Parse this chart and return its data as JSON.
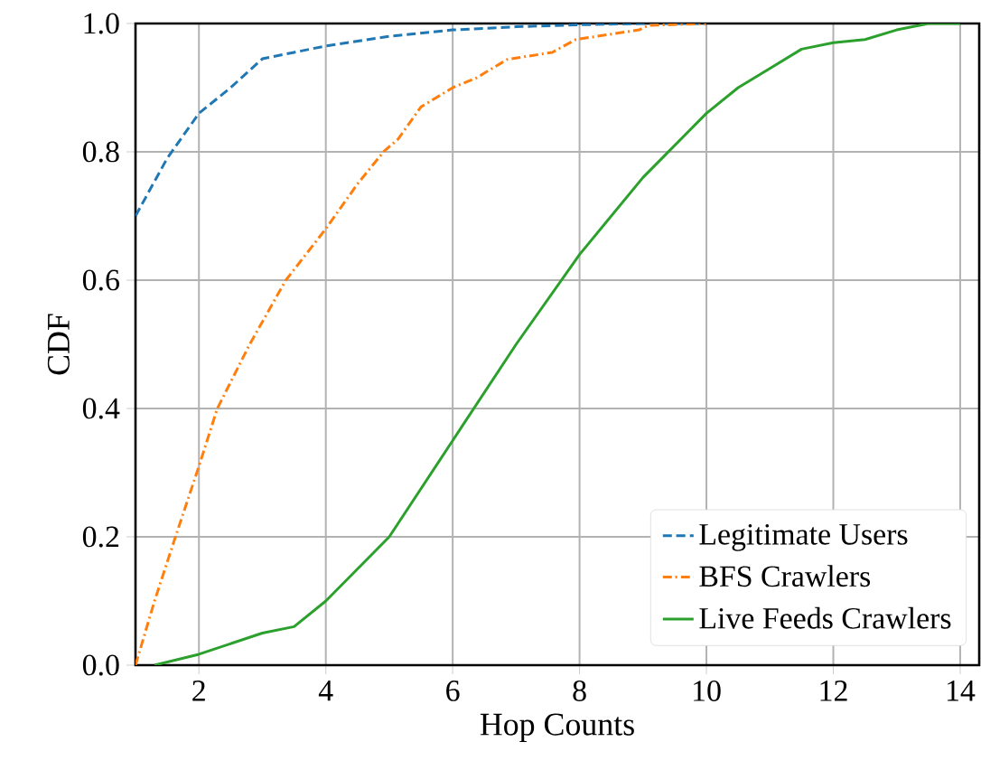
{
  "chart_data": {
    "type": "line",
    "xlabel": "Hop Counts",
    "ylabel": "CDF",
    "xlim": [
      1,
      14.3
    ],
    "ylim": [
      0,
      1
    ],
    "xticks": [
      2,
      4,
      6,
      8,
      10,
      12,
      14
    ],
    "yticks": [
      {
        "value": 0,
        "label": "0.0"
      },
      0.2,
      0.4,
      0.6,
      0.8,
      {
        "value": 1,
        "label": "1.0"
      }
    ],
    "grid": true,
    "legend": "bottom right",
    "marker": "none",
    "series": [
      {
        "name": "Legitimate Users",
        "color": "#1f77b4",
        "line_style": "dashed",
        "x": [
          1,
          1.5,
          2,
          2.5,
          3,
          3.5,
          4,
          5,
          6,
          7,
          8,
          9,
          10
        ],
        "values": [
          0.7,
          0.79,
          0.86,
          0.9,
          0.945,
          0.955,
          0.965,
          0.98,
          0.99,
          0.995,
          0.998,
          1.0,
          1.0
        ]
      },
      {
        "name": "BFS Crawlers",
        "color": "#ff7f0e",
        "line_style": "dashdot",
        "x": [
          1,
          1.3,
          1.63,
          2,
          2.29,
          2.8,
          3.37,
          4,
          4.5,
          4.91,
          5.14,
          5.5,
          6,
          6.37,
          6.86,
          7.57,
          7.94,
          8.94,
          9.09,
          10
        ],
        "values": [
          0,
          0.1,
          0.2,
          0.31,
          0.4,
          0.5,
          0.6,
          0.68,
          0.75,
          0.8,
          0.82,
          0.87,
          0.9,
          0.915,
          0.944,
          0.955,
          0.975,
          0.99,
          0.997,
          1.0
        ]
      },
      {
        "name": "Live Feeds Crawlers",
        "color": "#2ca02c",
        "line_style": "solid",
        "x": [
          1.3,
          2,
          3,
          3.5,
          4,
          5,
          6,
          7,
          8,
          9,
          10,
          10.5,
          11,
          11.5,
          12,
          12.5,
          13,
          13.5,
          14
        ],
        "values": [
          0,
          0.017,
          0.05,
          0.06,
          0.1,
          0.2,
          0.35,
          0.5,
          0.64,
          0.76,
          0.86,
          0.9,
          0.93,
          0.96,
          0.97,
          0.975,
          0.99,
          1.0,
          1.0
        ]
      }
    ]
  }
}
